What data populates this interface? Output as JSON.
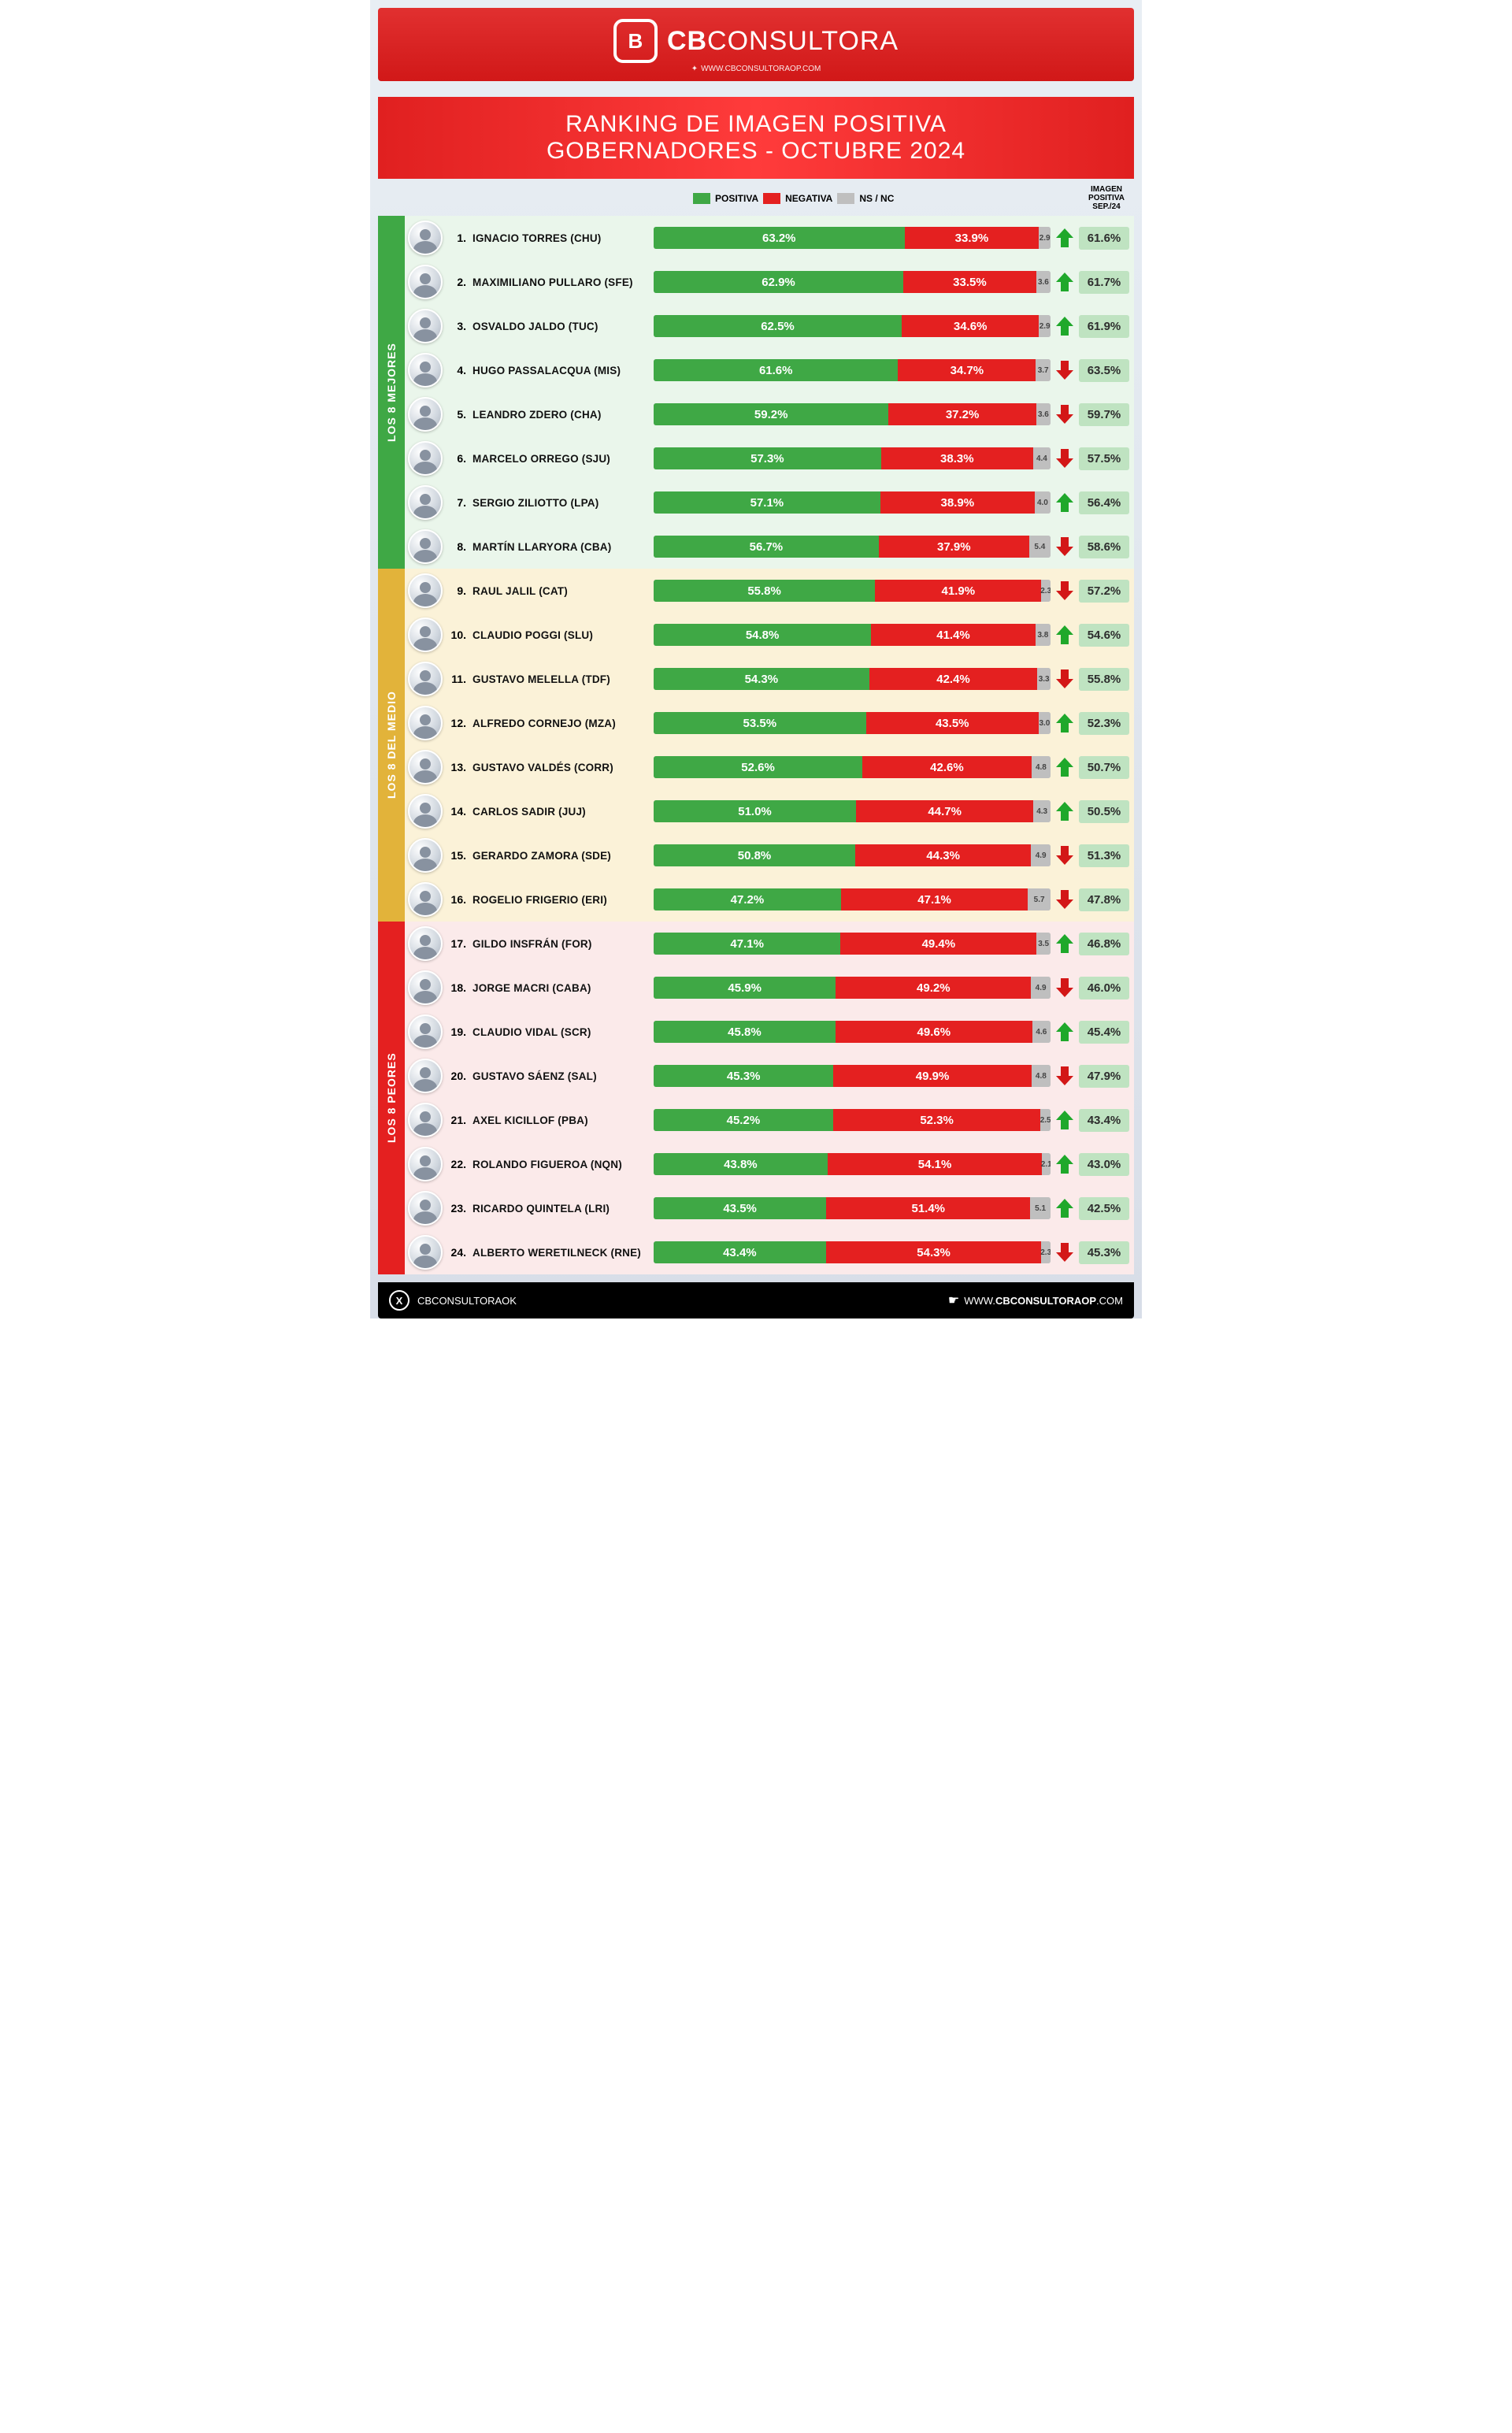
{
  "brand": {
    "name_bold": "CB",
    "name_light": "CONSULTORA",
    "url": "WWW.CBCONSULTORAOP.COM",
    "logo_letter": "B"
  },
  "title": {
    "line1": "RANKING DE IMAGEN POSITIVA",
    "line2": "GOBERNADORES - OCTUBRE 2024"
  },
  "legend": {
    "positive": "POSITIVA",
    "negative": "NEGATIVA",
    "nsnc": "NS / NC",
    "prev_label1": "IMAGEN",
    "prev_label2": "POSITIVA",
    "prev_label3": "SEP./24"
  },
  "colors": {
    "positive": "#3fa845",
    "negative": "#e42020",
    "nsnc": "#bfbfbf",
    "prev_bg": "#bfe3c1",
    "arrow_up": "#1fa82b",
    "arrow_down": "#d31717",
    "group_best": "#3fa845",
    "group_mid": "#e2b33a",
    "group_worst": "#e42020",
    "tint_best": "#eaf6eb",
    "tint_mid": "#fbf2d8",
    "tint_worst": "#fbeaea"
  },
  "groups": [
    {
      "key": "best",
      "label": "LOS 8 MEJORES"
    },
    {
      "key": "mid",
      "label": "LOS 8 DEL MEDIO"
    },
    {
      "key": "worst",
      "label": "LOS 8 PEORES"
    }
  ],
  "rows": [
    {
      "g": "best",
      "rank": 1,
      "name": "IGNACIO TORRES (CHU)",
      "pos": 63.2,
      "neg": 33.9,
      "ns": 2.9,
      "trend": "up",
      "prev": 61.6
    },
    {
      "g": "best",
      "rank": 2,
      "name": "MAXIMILIANO PULLARO (SFE)",
      "pos": 62.9,
      "neg": 33.5,
      "ns": 3.6,
      "trend": "up",
      "prev": 61.7
    },
    {
      "g": "best",
      "rank": 3,
      "name": "OSVALDO JALDO (TUC)",
      "pos": 62.5,
      "neg": 34.6,
      "ns": 2.9,
      "trend": "up",
      "prev": 61.9
    },
    {
      "g": "best",
      "rank": 4,
      "name": "HUGO PASSALACQUA (MIS)",
      "pos": 61.6,
      "neg": 34.7,
      "ns": 3.7,
      "trend": "down",
      "prev": 63.5
    },
    {
      "g": "best",
      "rank": 5,
      "name": "LEANDRO ZDERO (CHA)",
      "pos": 59.2,
      "neg": 37.2,
      "ns": 3.6,
      "trend": "down",
      "prev": 59.7
    },
    {
      "g": "best",
      "rank": 6,
      "name": "MARCELO ORREGO (SJU)",
      "pos": 57.3,
      "neg": 38.3,
      "ns": 4.4,
      "trend": "down",
      "prev": 57.5
    },
    {
      "g": "best",
      "rank": 7,
      "name": "SERGIO ZILIOTTO (LPA)",
      "pos": 57.1,
      "neg": 38.9,
      "ns": 4.0,
      "trend": "up",
      "prev": 56.4
    },
    {
      "g": "best",
      "rank": 8,
      "name": "MARTÍN LLARYORA (CBA)",
      "pos": 56.7,
      "neg": 37.9,
      "ns": 5.4,
      "trend": "down",
      "prev": 58.6
    },
    {
      "g": "mid",
      "rank": 9,
      "name": "RAUL JALIL (CAT)",
      "pos": 55.8,
      "neg": 41.9,
      "ns": 2.3,
      "trend": "down",
      "prev": 57.2
    },
    {
      "g": "mid",
      "rank": 10,
      "name": "CLAUDIO POGGI (SLU)",
      "pos": 54.8,
      "neg": 41.4,
      "ns": 3.8,
      "trend": "up",
      "prev": 54.6
    },
    {
      "g": "mid",
      "rank": 11,
      "name": "GUSTAVO MELELLA (TDF)",
      "pos": 54.3,
      "neg": 42.4,
      "ns": 3.3,
      "trend": "down",
      "prev": 55.8
    },
    {
      "g": "mid",
      "rank": 12,
      "name": "ALFREDO CORNEJO (MZA)",
      "pos": 53.5,
      "neg": 43.5,
      "ns": 3.0,
      "trend": "up",
      "prev": 52.3
    },
    {
      "g": "mid",
      "rank": 13,
      "name": "GUSTAVO VALDÉS (CORR)",
      "pos": 52.6,
      "neg": 42.6,
      "ns": 4.8,
      "trend": "up",
      "prev": 50.7
    },
    {
      "g": "mid",
      "rank": 14,
      "name": "CARLOS SADIR (JUJ)",
      "pos": 51.0,
      "neg": 44.7,
      "ns": 4.3,
      "trend": "up",
      "prev": 50.5
    },
    {
      "g": "mid",
      "rank": 15,
      "name": "GERARDO ZAMORA (SDE)",
      "pos": 50.8,
      "neg": 44.3,
      "ns": 4.9,
      "trend": "down",
      "prev": 51.3
    },
    {
      "g": "mid",
      "rank": 16,
      "name": "ROGELIO FRIGERIO (ERI)",
      "pos": 47.2,
      "neg": 47.1,
      "ns": 5.7,
      "trend": "down",
      "prev": 47.8
    },
    {
      "g": "worst",
      "rank": 17,
      "name": "GILDO INSFRÁN (FOR)",
      "pos": 47.1,
      "neg": 49.4,
      "ns": 3.5,
      "trend": "up",
      "prev": 46.8
    },
    {
      "g": "worst",
      "rank": 18,
      "name": "JORGE MACRI (CABA)",
      "pos": 45.9,
      "neg": 49.2,
      "ns": 4.9,
      "trend": "down",
      "prev": 46.0
    },
    {
      "g": "worst",
      "rank": 19,
      "name": "CLAUDIO VIDAL (SCR)",
      "pos": 45.8,
      "neg": 49.6,
      "ns": 4.6,
      "trend": "up",
      "prev": 45.4
    },
    {
      "g": "worst",
      "rank": 20,
      "name": "GUSTAVO SÁENZ (SAL)",
      "pos": 45.3,
      "neg": 49.9,
      "ns": 4.8,
      "trend": "down",
      "prev": 47.9
    },
    {
      "g": "worst",
      "rank": 21,
      "name": "AXEL KICILLOF (PBA)",
      "pos": 45.2,
      "neg": 52.3,
      "ns": 2.5,
      "trend": "up",
      "prev": 43.4
    },
    {
      "g": "worst",
      "rank": 22,
      "name": "ROLANDO FIGUEROA (NQN)",
      "pos": 43.8,
      "neg": 54.1,
      "ns": 2.1,
      "trend": "up",
      "prev": 43.0
    },
    {
      "g": "worst",
      "rank": 23,
      "name": "RICARDO QUINTELA (LRI)",
      "pos": 43.5,
      "neg": 51.4,
      "ns": 5.1,
      "trend": "up",
      "prev": 42.5
    },
    {
      "g": "worst",
      "rank": 24,
      "name": "ALBERTO WERETILNECK (RNE)",
      "pos": 43.4,
      "neg": 54.3,
      "ns": 2.3,
      "trend": "down",
      "prev": 45.3
    }
  ],
  "footer": {
    "handle": "CBCONSULTORAOK",
    "site_prefix": "WWW.",
    "site_bold": "CBCONSULTORAOP",
    "site_suffix": ".COM"
  }
}
